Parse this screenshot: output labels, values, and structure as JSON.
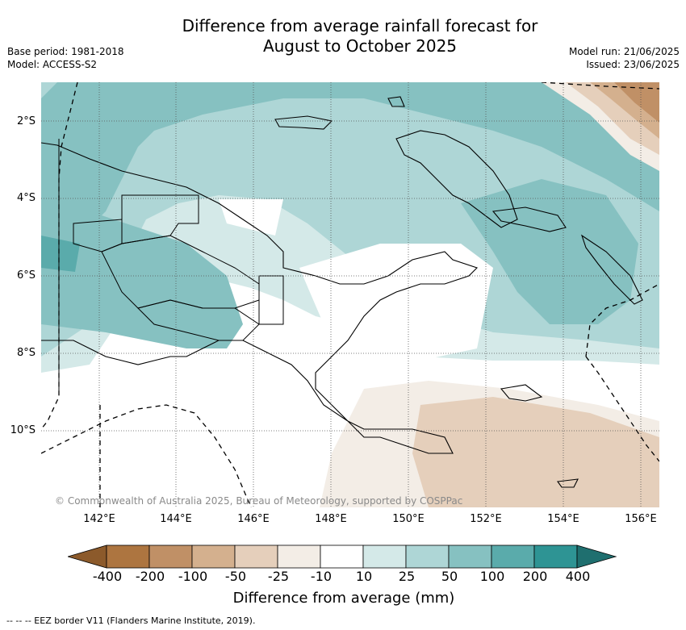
{
  "title_line1": "Difference from average rainfall forecast for",
  "title_line2": "August to October 2025",
  "meta_left": {
    "base_period": "Base period: 1981-2018",
    "model": "Model: ACCESS-S2"
  },
  "meta_right": {
    "model_run": "Model run: 21/06/2025",
    "issued": "Issued: 23/06/2025"
  },
  "lat_labels": [
    "2°S",
    "4°S",
    "6°S",
    "8°S",
    "10°S"
  ],
  "lon_labels": [
    "142°E",
    "144°E",
    "146°E",
    "148°E",
    "150°E",
    "152°E",
    "154°E",
    "156°E"
  ],
  "copyright": "© Commonwealth of Australia 2025, Bureau of Meteorology, supported by COSPPac",
  "colorbar": {
    "ticks": [
      "-400",
      "-200",
      "-100",
      "-50",
      "-25",
      "-10",
      "10",
      "25",
      "50",
      "100",
      "200",
      "400"
    ],
    "colors": [
      "#8c5a2b",
      "#ad7540",
      "#c09066",
      "#d4b08e",
      "#e5cfbb",
      "#f3ede6",
      "#ffffff",
      "#d4e9e8",
      "#aed6d6",
      "#86c1c1",
      "#5aabab",
      "#2e9494",
      "#1f6f6f"
    ],
    "title": "Difference from average (mm)"
  },
  "footnote": "--  --  -- EEZ border V11 (Flanders Marine Institute, 2019)."
}
